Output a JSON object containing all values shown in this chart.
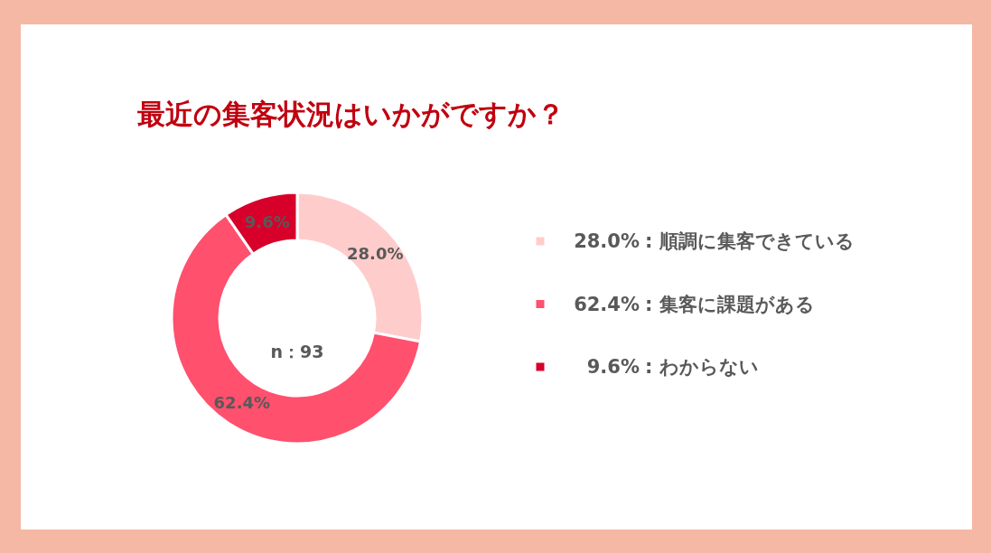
{
  "chart_data": {
    "type": "donut",
    "title": "最近の集客状況はいかがですか？",
    "categories": [
      "順調に集客できている",
      "集客に課題がある",
      "わからない"
    ],
    "values": [
      28.0,
      62.4,
      9.6
    ],
    "colors": [
      "#ffcccc",
      "#ff506e",
      "#d7002a"
    ],
    "value_labels": [
      "28.0%",
      "62.4%",
      "9.6%"
    ],
    "legend": "right",
    "annotations": [
      "n：93"
    ]
  }
}
